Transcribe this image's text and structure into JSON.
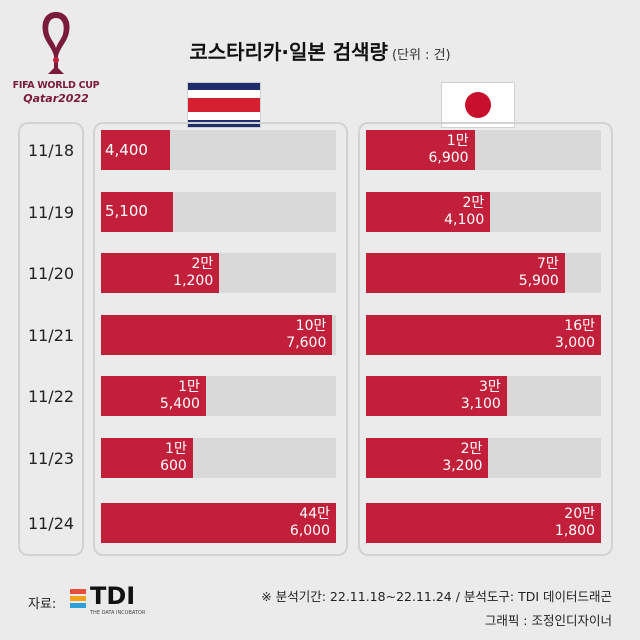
{
  "logo": {
    "line1": "FIFA WORLD CUP",
    "line2": "Qatar2022"
  },
  "title": {
    "main": "코스타리카·일본 검색량",
    "unit": "(단위 : 건)"
  },
  "countries": [
    {
      "key": "cr",
      "flag": "costa-rica-flag"
    },
    {
      "key": "jp",
      "flag": "japan-flag"
    }
  ],
  "colors": {
    "bar": "#c11f3a",
    "track": "#d9d9d9",
    "background": "#ecebeb"
  },
  "chart_data": {
    "type": "bar",
    "orientation": "horizontal",
    "categories": [
      "11/18",
      "11/19",
      "11/20",
      "11/21",
      "11/22",
      "11/23",
      "11/24"
    ],
    "series": [
      {
        "values": [
          4400,
          5100,
          21200,
          107600,
          15400,
          10600,
          446000
        ],
        "labels": [
          [
            "4,400"
          ],
          [
            "5,100"
          ],
          [
            "2만",
            "1,200"
          ],
          [
            "10만",
            "7,600"
          ],
          [
            "1만",
            "5,400"
          ],
          [
            "1만",
            "600"
          ],
          [
            "44만",
            "6,000"
          ]
        ]
      },
      {
        "values": [
          16900,
          24100,
          75900,
          163000,
          33100,
          23200,
          201800
        ],
        "labels": [
          [
            "1만",
            "6,900"
          ],
          [
            "2만",
            "4,100"
          ],
          [
            "7만",
            "5,900"
          ],
          [
            "16만",
            "3,000"
          ],
          [
            "3만",
            "3,100"
          ],
          [
            "2만",
            "3,200"
          ],
          [
            "20만",
            "1,800"
          ]
        ]
      }
    ]
  },
  "footer": {
    "source_label": "자료:",
    "tdi_name": "TDI",
    "tdi_sub": "THE DATA INCUBATOR",
    "note_period": "※ 분석기간: 22.11.18~22.11.24 / 분석도구: TDI 데이터드래곤",
    "note_graphic": "그래픽 : 조정인디자이너"
  }
}
